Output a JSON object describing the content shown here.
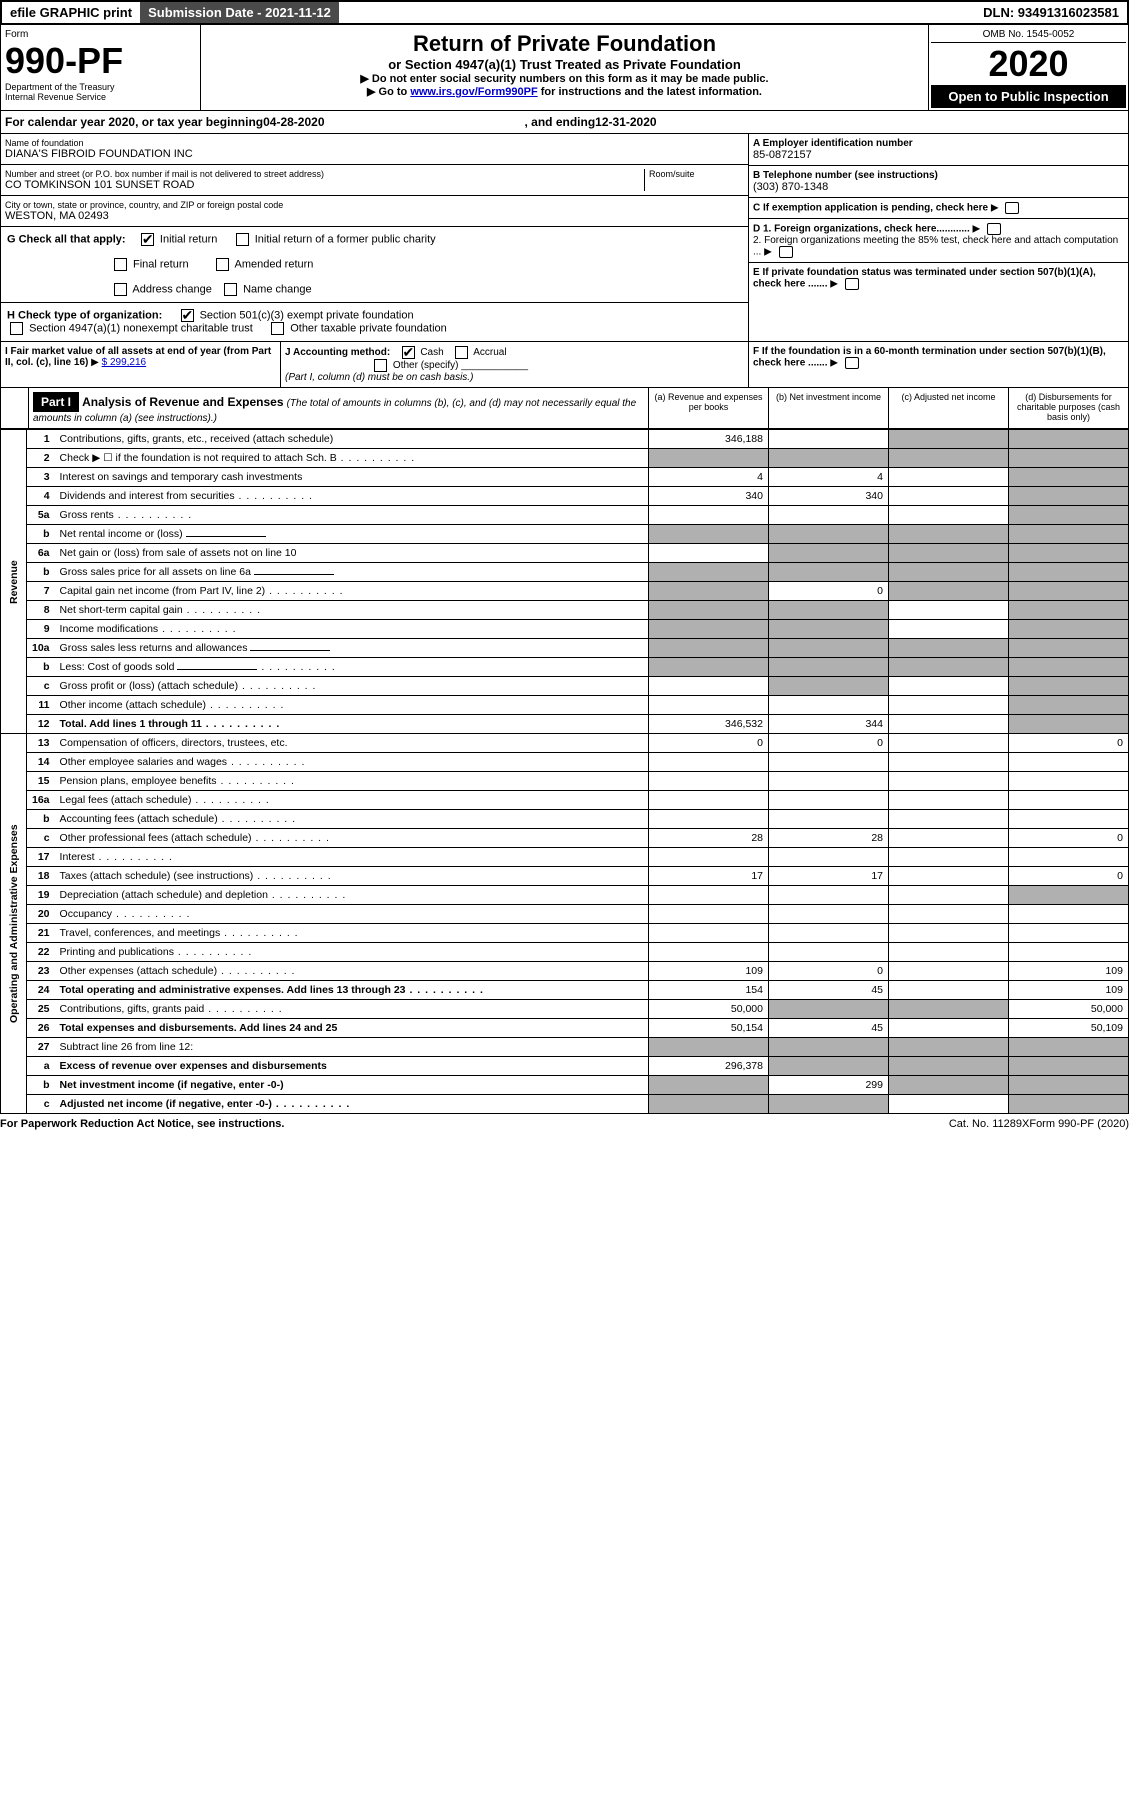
{
  "topbar": {
    "efile": "efile GRAPHIC print",
    "submission_label": "Submission Date - 2021-11-12",
    "dln_label": "DLN: 93491316023581"
  },
  "header": {
    "form_label": "Form",
    "form_number": "990-PF",
    "dept1": "Department of the Treasury",
    "dept2": "Internal Revenue Service",
    "title": "Return of Private Foundation",
    "subtitle": "or Section 4947(a)(1) Trust Treated as Private Foundation",
    "instr1": "▶ Do not enter social security numbers on this form as it may be made public.",
    "instr2_pre": "▶ Go to ",
    "instr2_link": "www.irs.gov/Form990PF",
    "instr2_post": " for instructions and the latest information.",
    "omb": "OMB No. 1545-0052",
    "year": "2020",
    "open_public": "Open to Public Inspection"
  },
  "calendar": {
    "text_pre": "For calendar year 2020, or tax year beginning ",
    "begin": "04-28-2020",
    "mid": " , and ending ",
    "end": "12-31-2020"
  },
  "entity": {
    "name_label": "Name of foundation",
    "name": "DIANA'S FIBROID FOUNDATION INC",
    "addr_label": "Number and street (or P.O. box number if mail is not delivered to street address)",
    "addr": "CO TOMKINSON 101 SUNSET ROAD",
    "room_label": "Room/suite",
    "city_label": "City or town, state or province, country, and ZIP or foreign postal code",
    "city": "WESTON, MA  02493",
    "ein_label": "A Employer identification number",
    "ein": "85-0872157",
    "phone_label": "B Telephone number (see instructions)",
    "phone": "(303) 870-1348",
    "c_label": "C If exemption application is pending, check here",
    "d1": "D 1. Foreign organizations, check here............",
    "d2": "2. Foreign organizations meeting the 85% test, check here and attach computation ...",
    "e_label": "E  If private foundation status was terminated under section 507(b)(1)(A), check here .......",
    "f_label": "F  If the foundation is in a 60-month termination under section 507(b)(1)(B), check here .......",
    "g_label": "G Check all that apply:",
    "g_opts": {
      "initial": "Initial return",
      "initial_former": "Initial return of a former public charity",
      "final": "Final return",
      "amended": "Amended return",
      "addr_change": "Address change",
      "name_change": "Name change"
    },
    "h_label": "H Check type of organization:",
    "h_opts": {
      "501c3": "Section 501(c)(3) exempt private foundation",
      "4947": "Section 4947(a)(1) nonexempt charitable trust",
      "other_tax": "Other taxable private foundation"
    },
    "i_label": "I Fair market value of all assets at end of year (from Part II, col. (c), line 16)",
    "i_val": "$  299,216",
    "j_label": "J Accounting method:",
    "j_cash": "Cash",
    "j_accrual": "Accrual",
    "j_other": "Other (specify)",
    "j_note": "(Part I, column (d) must be on cash basis.)"
  },
  "part1": {
    "label": "Part I",
    "title": "Analysis of Revenue and Expenses",
    "title_sub": "(The total of amounts in columns (b), (c), and (d) may not necessarily equal the amounts in column (a) (see instructions).)",
    "col_a": "(a)  Revenue and expenses per books",
    "col_b": "(b)  Net investment income",
    "col_c": "(c)  Adjusted net income",
    "col_d": "(d)  Disbursements for charitable purposes (cash basis only)"
  },
  "sections": {
    "revenue": "Revenue",
    "expenses": "Operating and Administrative Expenses"
  },
  "lines": [
    {
      "n": "1",
      "desc": "Contributions, gifts, grants, etc., received (attach schedule)",
      "a": "346,188",
      "b": "",
      "c": "",
      "d": "",
      "shade_c": true,
      "shade_d": true
    },
    {
      "n": "2",
      "desc": "Check ▶ ☐ if the foundation is not required to attach Sch. B",
      "a": "",
      "b": "",
      "c": "",
      "d": "",
      "shade_a": true,
      "shade_b": true,
      "shade_c": true,
      "shade_d": true,
      "dots": true
    },
    {
      "n": "3",
      "desc": "Interest on savings and temporary cash investments",
      "a": "4",
      "b": "4",
      "c": "",
      "d": "",
      "shade_d": true
    },
    {
      "n": "4",
      "desc": "Dividends and interest from securities",
      "a": "340",
      "b": "340",
      "c": "",
      "d": "",
      "shade_d": true,
      "dots": true
    },
    {
      "n": "5a",
      "desc": "Gross rents",
      "a": "",
      "b": "",
      "c": "",
      "d": "",
      "shade_d": true,
      "dots": true
    },
    {
      "n": "b",
      "desc": "Net rental income or (loss)",
      "a": "",
      "b": "",
      "c": "",
      "d": "",
      "shade_a": true,
      "shade_b": true,
      "shade_c": true,
      "shade_d": true,
      "inline": true
    },
    {
      "n": "6a",
      "desc": "Net gain or (loss) from sale of assets not on line 10",
      "a": "",
      "b": "",
      "c": "",
      "d": "",
      "shade_b": true,
      "shade_c": true,
      "shade_d": true
    },
    {
      "n": "b",
      "desc": "Gross sales price for all assets on line 6a",
      "a": "",
      "b": "",
      "c": "",
      "d": "",
      "shade_a": true,
      "shade_b": true,
      "shade_c": true,
      "shade_d": true,
      "inline": true
    },
    {
      "n": "7",
      "desc": "Capital gain net income (from Part IV, line 2)",
      "a": "",
      "b": "0",
      "c": "",
      "d": "",
      "shade_a": true,
      "shade_c": true,
      "shade_d": true,
      "dots": true
    },
    {
      "n": "8",
      "desc": "Net short-term capital gain",
      "a": "",
      "b": "",
      "c": "",
      "d": "",
      "shade_a": true,
      "shade_b": true,
      "shade_d": true,
      "dots": true
    },
    {
      "n": "9",
      "desc": "Income modifications",
      "a": "",
      "b": "",
      "c": "",
      "d": "",
      "shade_a": true,
      "shade_b": true,
      "shade_d": true,
      "dots": true
    },
    {
      "n": "10a",
      "desc": "Gross sales less returns and allowances",
      "a": "",
      "b": "",
      "c": "",
      "d": "",
      "shade_a": true,
      "shade_b": true,
      "shade_c": true,
      "shade_d": true,
      "inline": true
    },
    {
      "n": "b",
      "desc": "Less: Cost of goods sold",
      "a": "",
      "b": "",
      "c": "",
      "d": "",
      "shade_a": true,
      "shade_b": true,
      "shade_c": true,
      "shade_d": true,
      "inline": true,
      "dots": true
    },
    {
      "n": "c",
      "desc": "Gross profit or (loss) (attach schedule)",
      "a": "",
      "b": "",
      "c": "",
      "d": "",
      "shade_b": true,
      "shade_d": true,
      "dots": true
    },
    {
      "n": "11",
      "desc": "Other income (attach schedule)",
      "a": "",
      "b": "",
      "c": "",
      "d": "",
      "shade_d": true,
      "dots": true
    },
    {
      "n": "12",
      "desc": "Total. Add lines 1 through 11",
      "a": "346,532",
      "b": "344",
      "c": "",
      "d": "",
      "bold": true,
      "shade_d": true,
      "dots": true
    },
    {
      "n": "13",
      "desc": "Compensation of officers, directors, trustees, etc.",
      "a": "0",
      "b": "0",
      "c": "",
      "d": "0"
    },
    {
      "n": "14",
      "desc": "Other employee salaries and wages",
      "a": "",
      "b": "",
      "c": "",
      "d": "",
      "dots": true
    },
    {
      "n": "15",
      "desc": "Pension plans, employee benefits",
      "a": "",
      "b": "",
      "c": "",
      "d": "",
      "dots": true
    },
    {
      "n": "16a",
      "desc": "Legal fees (attach schedule)",
      "a": "",
      "b": "",
      "c": "",
      "d": "",
      "dots": true
    },
    {
      "n": "b",
      "desc": "Accounting fees (attach schedule)",
      "a": "",
      "b": "",
      "c": "",
      "d": "",
      "dots": true
    },
    {
      "n": "c",
      "desc": "Other professional fees (attach schedule)",
      "a": "28",
      "b": "28",
      "c": "",
      "d": "0",
      "dots": true
    },
    {
      "n": "17",
      "desc": "Interest",
      "a": "",
      "b": "",
      "c": "",
      "d": "",
      "dots": true
    },
    {
      "n": "18",
      "desc": "Taxes (attach schedule) (see instructions)",
      "a": "17",
      "b": "17",
      "c": "",
      "d": "0",
      "dots": true
    },
    {
      "n": "19",
      "desc": "Depreciation (attach schedule) and depletion",
      "a": "",
      "b": "",
      "c": "",
      "d": "",
      "shade_d": true,
      "dots": true
    },
    {
      "n": "20",
      "desc": "Occupancy",
      "a": "",
      "b": "",
      "c": "",
      "d": "",
      "dots": true
    },
    {
      "n": "21",
      "desc": "Travel, conferences, and meetings",
      "a": "",
      "b": "",
      "c": "",
      "d": "",
      "dots": true
    },
    {
      "n": "22",
      "desc": "Printing and publications",
      "a": "",
      "b": "",
      "c": "",
      "d": "",
      "dots": true
    },
    {
      "n": "23",
      "desc": "Other expenses (attach schedule)",
      "a": "109",
      "b": "0",
      "c": "",
      "d": "109",
      "dots": true
    },
    {
      "n": "24",
      "desc": "Total operating and administrative expenses. Add lines 13 through 23",
      "a": "154",
      "b": "45",
      "c": "",
      "d": "109",
      "bold": true,
      "dots": true
    },
    {
      "n": "25",
      "desc": "Contributions, gifts, grants paid",
      "a": "50,000",
      "b": "",
      "c": "",
      "d": "50,000",
      "shade_b": true,
      "shade_c": true,
      "dots": true
    },
    {
      "n": "26",
      "desc": "Total expenses and disbursements. Add lines 24 and 25",
      "a": "50,154",
      "b": "45",
      "c": "",
      "d": "50,109",
      "bold": true
    },
    {
      "n": "27",
      "desc": "Subtract line 26 from line 12:",
      "a": "",
      "b": "",
      "c": "",
      "d": "",
      "shade_a": true,
      "shade_b": true,
      "shade_c": true,
      "shade_d": true
    },
    {
      "n": "a",
      "desc": "Excess of revenue over expenses and disbursements",
      "a": "296,378",
      "b": "",
      "c": "",
      "d": "",
      "bold": true,
      "shade_b": true,
      "shade_c": true,
      "shade_d": true
    },
    {
      "n": "b",
      "desc": "Net investment income (if negative, enter -0-)",
      "a": "",
      "b": "299",
      "c": "",
      "d": "",
      "bold": true,
      "shade_a": true,
      "shade_c": true,
      "shade_d": true
    },
    {
      "n": "c",
      "desc": "Adjusted net income (if negative, enter -0-)",
      "a": "",
      "b": "",
      "c": "",
      "d": "",
      "bold": true,
      "shade_a": true,
      "shade_b": true,
      "shade_d": true,
      "dots": true
    }
  ],
  "footer": {
    "left": "For Paperwork Reduction Act Notice, see instructions.",
    "mid": "Cat. No. 11289X",
    "right": "Form 990-PF (2020)"
  }
}
